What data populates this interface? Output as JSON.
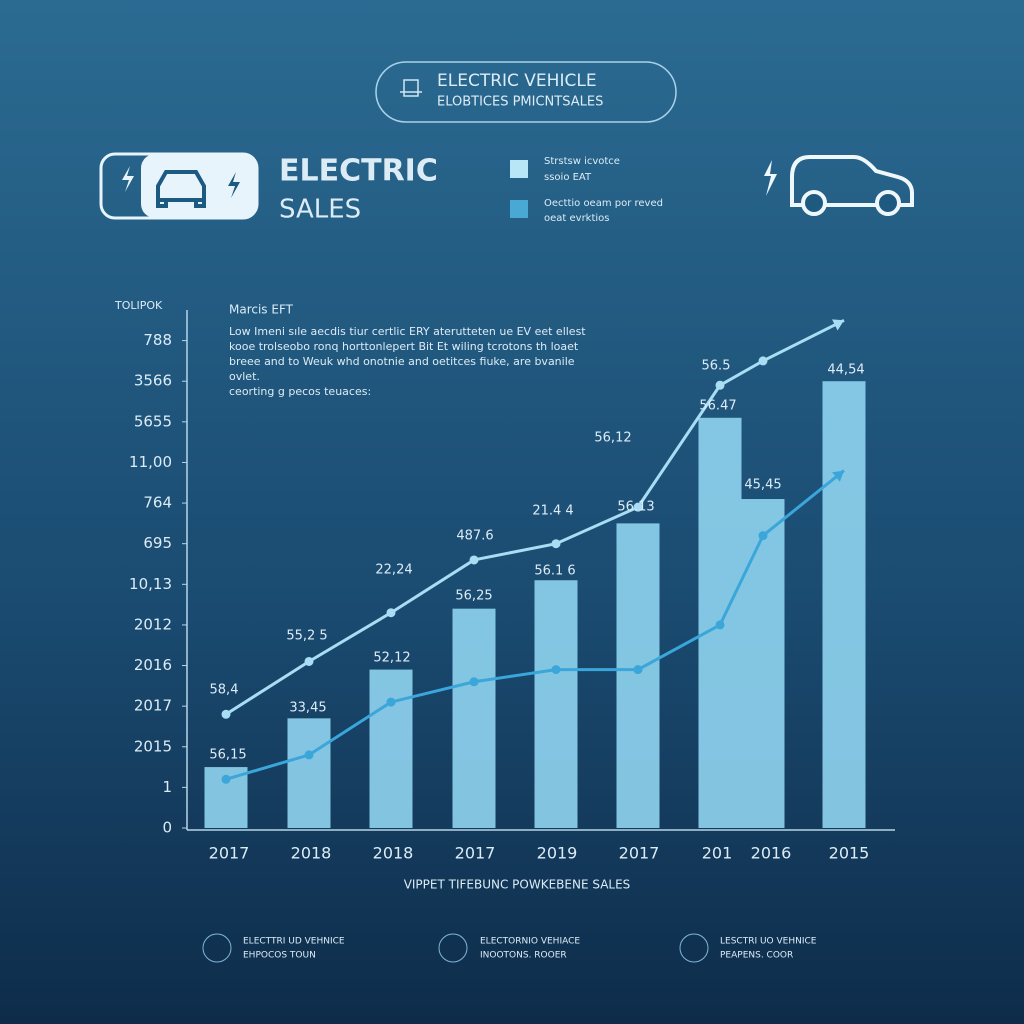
{
  "header": {
    "badge": [
      "ELECTRIC VEHICLE",
      "ELOBTICES PMICNTSALES"
    ],
    "title": [
      "ELECTRIC",
      "SALES"
    ]
  },
  "legend": [
    [
      "Strstsw icvotce",
      "ssoio EAT"
    ],
    [
      "Oecttio oeam  por reved",
      "oeat evrktios"
    ]
  ],
  "chart_data": {
    "type": "combo",
    "y_axis_title": "TOLIPOK",
    "x_axis_title": "VIPPET TIFEBUNC POWKEBENE SALES",
    "note_title": "Marcis EFT",
    "note": [
      "Low Imeni sıle aecdis tiur certlic ERY aterutteten ue EV eet ellest",
      "kooe trolseobo ronq horttonlepert Bit Et wiling tcrotons th loaet",
      "breee and to Weuk whd onotnie and oetitces fiuke, are bvanile",
      "ovlet.",
      "ceorting g pecos teuaces:"
    ],
    "categories": [
      "2017",
      "2018",
      "2018",
      "2017",
      "2019",
      "2017",
      "201",
      "2016",
      "2015"
    ],
    "series": [
      {
        "kind": "bar",
        "color": "#8fd4f0",
        "values": [
          1.5,
          2.7,
          3.9,
          5.4,
          6.1,
          7.5,
          10.1,
          8.1,
          11.0
        ]
      },
      {
        "kind": "line",
        "color": "#a9ddf4",
        "values": [
          2.8,
          4.1,
          5.3,
          6.6,
          7.0,
          7.9,
          10.9,
          11.5,
          12.5
        ]
      },
      {
        "kind": "line",
        "color": "#3aa6da",
        "values": [
          1.2,
          1.8,
          3.1,
          3.6,
          3.9,
          3.9,
          5.0,
          7.2,
          8.8
        ]
      }
    ],
    "ylim": [
      0,
      13
    ],
    "yticks": [
      0,
      1,
      {
        "value": 2,
        "label": "2015"
      },
      {
        "value": 3,
        "label": "2017"
      },
      {
        "value": 4,
        "label": "2016"
      },
      {
        "value": 5,
        "label": "2012"
      },
      {
        "value": 6,
        "label": "10,13"
      },
      {
        "value": 7,
        "label": "695"
      },
      {
        "value": 8,
        "label": "764"
      },
      {
        "value": 9,
        "label": "11,00"
      },
      {
        "value": 10,
        "label": "5655"
      },
      {
        "value": 11,
        "label": "3566"
      },
      {
        "value": 12,
        "label": "788"
      }
    ],
    "annotations": [
      "58,4",
      "55,2 5",
      "22,24",
      "487.6",
      "21.4 4",
      "56,12",
      "56.5",
      "56,15",
      "33,45",
      "52,12",
      "56,25",
      "56.1 6",
      "56.13",
      "56.47",
      "45,45",
      "44,54"
    ]
  },
  "footer": [
    [
      "ELECTTRI UD VEHNICE",
      "EHPOCOS TOUN"
    ],
    [
      "ELECTORNIO VEHIACE",
      "INOOTONS. ROOER"
    ],
    [
      "LESCTRI UO VEHNICE",
      "PEAPENS. COOR"
    ]
  ]
}
